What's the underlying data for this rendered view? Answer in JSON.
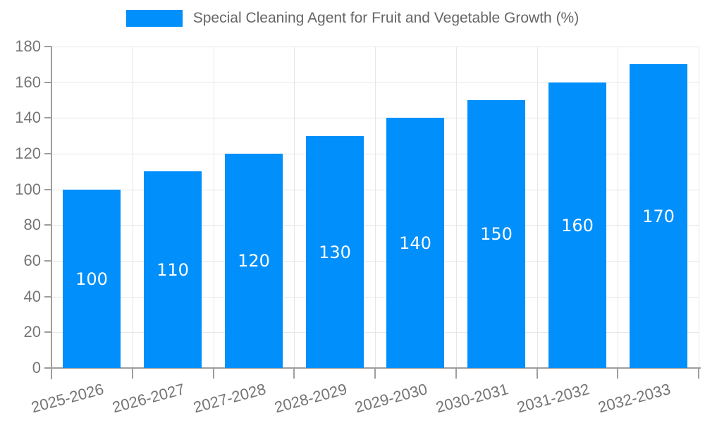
{
  "chart_data": {
    "type": "bar",
    "title": "Special Cleaning Agent for Fruit and Vegetable Growth (%)",
    "legend": [
      "Special Cleaning Agent for Fruit and Vegetable Growth (%)"
    ],
    "legend_position": "top",
    "categories": [
      "2025-2026",
      "2026-2027",
      "2027-2028",
      "2028-2029",
      "2029-2030",
      "2030-2031",
      "2031-2032",
      "2032-2033"
    ],
    "values": [
      100,
      110,
      120,
      130,
      140,
      150,
      160,
      170
    ],
    "data_labels": [
      "100",
      "110",
      "120",
      "130",
      "140",
      "150",
      "160",
      "170"
    ],
    "ylim": [
      0,
      180
    ],
    "ytick_step": 20,
    "yticks": [
      0,
      20,
      40,
      60,
      80,
      100,
      120,
      140,
      160,
      180
    ],
    "xlabel": "",
    "ylabel": "",
    "grid": true,
    "xlabel_rotation_deg": -15,
    "colors": {
      "bar": "#008ffb",
      "grid": "#e7e7e7",
      "axis": "#9e9e9e",
      "tick_label": "#757575",
      "legend_text": "#666666",
      "data_label": "#ffffff",
      "background": "#ffffff"
    }
  }
}
